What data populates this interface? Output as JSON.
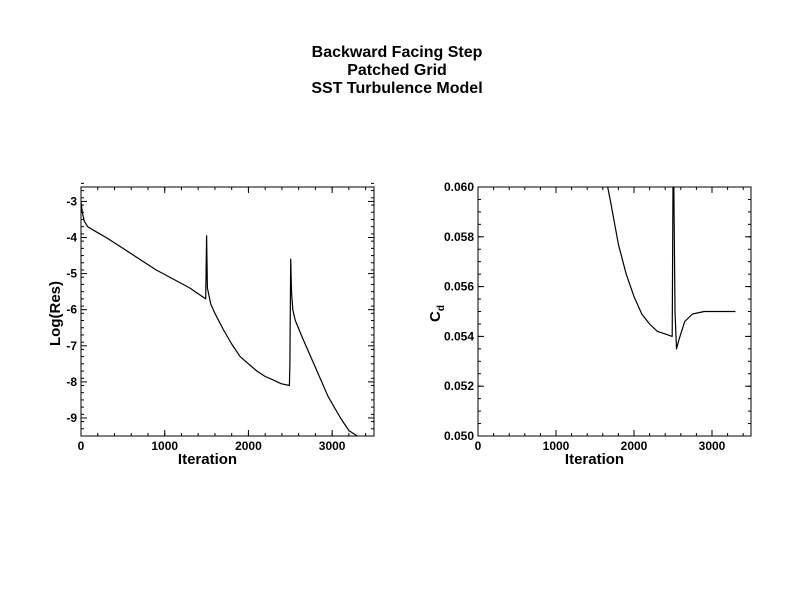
{
  "title_lines": [
    "Backward Facing Step",
    "Patched Grid",
    "SST Turbulence Model"
  ],
  "chart_data": [
    {
      "type": "line",
      "xlabel": "Iteration",
      "ylabel": "Log(Res)",
      "xlim": [
        0,
        3500
      ],
      "ylim": [
        -9.5,
        -2.6
      ],
      "xticks": [
        0,
        1000,
        2000,
        3000
      ],
      "xtick_labels": [
        "0",
        "1000",
        "2000",
        "3000"
      ],
      "yticks": [
        -9,
        -8,
        -7,
        -6,
        -5,
        -4,
        -3
      ],
      "ytick_labels": [
        "-9",
        "-8",
        "-7",
        "-6",
        "-5",
        "-4",
        "-3"
      ],
      "grid": false,
      "series": [
        {
          "points": [
            [
              0,
              -3.0
            ],
            [
              15,
              -3.3
            ],
            [
              40,
              -3.55
            ],
            [
              80,
              -3.7
            ],
            [
              150,
              -3.8
            ],
            [
              300,
              -4.0
            ],
            [
              500,
              -4.3
            ],
            [
              700,
              -4.6
            ],
            [
              900,
              -4.9
            ],
            [
              1100,
              -5.15
            ],
            [
              1300,
              -5.4
            ],
            [
              1490,
              -5.7
            ],
            [
              1500,
              -3.95
            ],
            [
              1510,
              -5.4
            ],
            [
              1550,
              -5.85
            ],
            [
              1600,
              -6.1
            ],
            [
              1700,
              -6.55
            ],
            [
              1800,
              -6.95
            ],
            [
              1900,
              -7.3
            ],
            [
              2000,
              -7.5
            ],
            [
              2100,
              -7.7
            ],
            [
              2200,
              -7.85
            ],
            [
              2300,
              -7.95
            ],
            [
              2390,
              -8.05
            ],
            [
              2490,
              -8.1
            ],
            [
              2495,
              -7.5
            ],
            [
              2505,
              -4.6
            ],
            [
              2515,
              -5.5
            ],
            [
              2530,
              -6.0
            ],
            [
              2560,
              -6.3
            ],
            [
              2650,
              -6.8
            ],
            [
              2800,
              -7.6
            ],
            [
              2950,
              -8.4
            ],
            [
              3100,
              -9.0
            ],
            [
              3200,
              -9.35
            ],
            [
              3300,
              -9.5
            ]
          ]
        }
      ]
    },
    {
      "type": "line",
      "xlabel": "Iteration",
      "ylabel": "C",
      "ylabel_subscript": "d",
      "xlim": [
        0,
        3500
      ],
      "ylim": [
        0.05,
        0.06
      ],
      "xticks": [
        0,
        1000,
        2000,
        3000
      ],
      "xtick_labels": [
        "0",
        "1000",
        "2000",
        "3000"
      ],
      "yticks": [
        0.05,
        0.052,
        0.054,
        0.056,
        0.058,
        0.06
      ],
      "ytick_labels": [
        "0.050",
        "0.052",
        "0.054",
        "0.056",
        "0.058",
        "0.060"
      ],
      "grid": false,
      "series": [
        {
          "points": [
            [
              1650,
              0.0602
            ],
            [
              1700,
              0.0594
            ],
            [
              1800,
              0.0577
            ],
            [
              1900,
              0.0565
            ],
            [
              2000,
              0.0556
            ],
            [
              2100,
              0.0549
            ],
            [
              2200,
              0.0545
            ],
            [
              2300,
              0.0542
            ],
            [
              2400,
              0.0541
            ],
            [
              2490,
              0.054
            ],
            [
              2500,
              0.0602
            ],
            [
              2510,
              0.0602
            ],
            [
              2525,
              0.055
            ],
            [
              2545,
              0.0535
            ],
            [
              2580,
              0.0539
            ],
            [
              2650,
              0.0546
            ],
            [
              2750,
              0.0549
            ],
            [
              2900,
              0.055
            ],
            [
              3100,
              0.055
            ],
            [
              3300,
              0.055
            ]
          ]
        }
      ]
    }
  ]
}
